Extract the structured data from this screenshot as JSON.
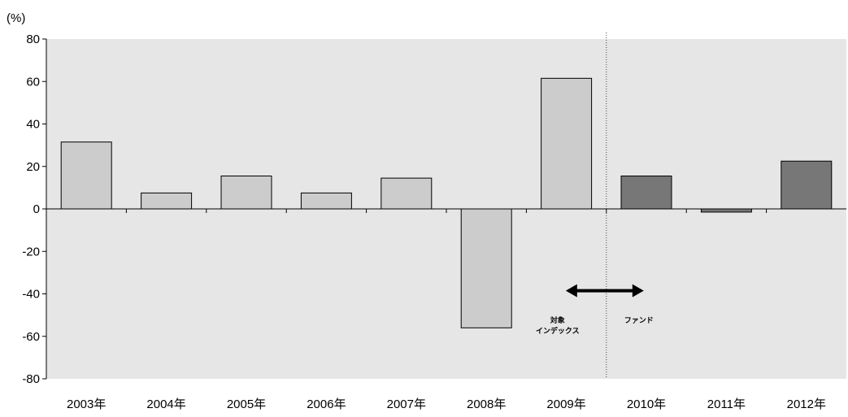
{
  "chart_data": {
    "type": "bar",
    "unit_label": "(%)",
    "categories": [
      "2003年",
      "2004年",
      "2005年",
      "2006年",
      "2007年",
      "2008年",
      "2009年",
      "2010年",
      "2011年",
      "2012年"
    ],
    "values": [
      31.5,
      7.5,
      15.5,
      7.5,
      14.5,
      -56,
      61.5,
      15.5,
      -1.5,
      22.5
    ],
    "segment": [
      "index",
      "index",
      "index",
      "index",
      "index",
      "index",
      "index",
      "fund",
      "fund",
      "fund"
    ],
    "ylim": [
      -80,
      80
    ],
    "yticks": [
      80,
      60,
      40,
      20,
      0,
      -20,
      -40,
      -60,
      -80
    ],
    "grid": false,
    "divider_after_category": "2009年",
    "annotations": {
      "left_label_line1": "対象",
      "left_label_line2": "インデックス",
      "right_label": "ファンド"
    },
    "colors": {
      "plot_background": "#e6e6e6",
      "index_bar": "#cccccc",
      "fund_bar": "#777777",
      "bar_stroke": "#000000"
    }
  }
}
